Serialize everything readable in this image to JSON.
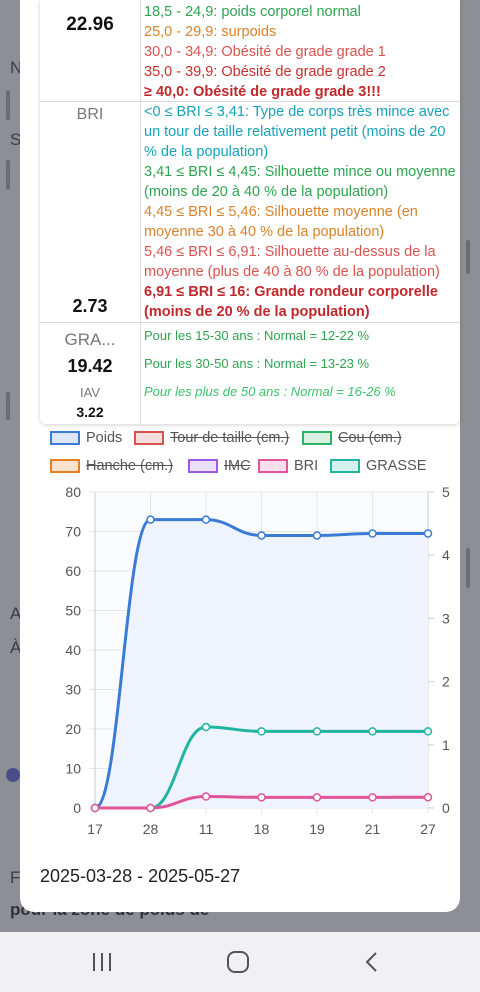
{
  "background": {
    "letters": [
      "N",
      "S",
      "A",
      "À",
      "F"
    ],
    "bottom_text": "pour la zone de poids de"
  },
  "table": {
    "imc": {
      "value": "22.96",
      "ranges": [
        {
          "text": "18,5 - 24,9: poids corporel normal",
          "color": "#2ea44f"
        },
        {
          "text": "25,0 - 29,9: surpoids",
          "color": "#d9822b"
        },
        {
          "text": "30,0 - 34,9: Obésité de grade grade 1",
          "color": "#d9534f"
        },
        {
          "text": "35,0 - 39,9: Obésité de grade grade 2",
          "color": "#c9302c"
        },
        {
          "text": "≥ 40,0: Obésité de grade grade 3!!!",
          "color": "#c0282c"
        }
      ]
    },
    "bri": {
      "label": "BRI",
      "value": "2.73",
      "ranges": [
        {
          "text": "<0 ≤ BRI ≤ 3,41: Type de corps très mince avec un tour de taille relativement petit (moins de 20 % de la population)"
        },
        {
          "text": "3,41 ≤ BRI ≤ 4,45: Silhouette mince ou moyenne (moins de 20 à 40 % de la population)"
        },
        {
          "text": "4,45 ≤ BRI ≤ 5,46: Silhouette moyenne (en moyenne 30 à 40 % de la population)"
        },
        {
          "text": "5,46 ≤ BRI ≤ 6,91: Silhouette au-dessus de la moyenne (plus de 40 à 80 % de la population)"
        },
        {
          "text": "6,91 ≤ BRI ≤ 16: Grande rondeur corporelle (moins de 20 % de la population)"
        }
      ]
    },
    "grasse": {
      "label": "GRA...",
      "value": "19.42",
      "iav_label": "IAV",
      "iav_value": "3.22",
      "ranges": [
        {
          "text": "Pour les 15-30 ans : Normal = 12-22 %"
        },
        {
          "text": "Pour les 30-50 ans : Normal = 13-23 %"
        },
        {
          "text": "Pour les plus de 50 ans : Normal = 16-26 %"
        }
      ]
    }
  },
  "legend": [
    {
      "label": "Poids",
      "color": "#3a7bd5",
      "fill": "#dbe7f8",
      "hidden": false
    },
    {
      "label": "Tour de taille (cm.)",
      "color": "#d9534f",
      "fill": "#f6dede",
      "hidden": true
    },
    {
      "label": "Cou (cm.)",
      "color": "#28b463",
      "fill": "#d9f0e2",
      "hidden": true
    },
    {
      "label": "Hanche (cm.)",
      "color": "#e67e22",
      "fill": "#f8e2cf",
      "hidden": true
    },
    {
      "label": "IMC",
      "color": "#9b59e8",
      "fill": "#ecdff9",
      "hidden": true
    },
    {
      "label": "BRI",
      "color": "#e0559a",
      "fill": "#f9dfea",
      "hidden": false
    },
    {
      "label": "GRASSE",
      "color": "#1fb5a0",
      "fill": "#d5f1ed",
      "hidden": false
    }
  ],
  "chart_data": {
    "type": "line",
    "categories": [
      "17",
      "28",
      "11",
      "18",
      "19",
      "21",
      "27"
    ],
    "y_left": {
      "min": 0,
      "max": 80,
      "ticks": [
        0,
        10,
        20,
        30,
        40,
        50,
        60,
        70,
        80
      ]
    },
    "y_right": {
      "min": 0,
      "max": 5,
      "ticks": [
        0,
        1,
        2,
        3,
        4,
        5
      ]
    },
    "series": [
      {
        "name": "Poids",
        "axis": "left",
        "color": "#3a7bd5",
        "values": [
          0,
          73,
          73,
          69,
          69,
          69.5,
          69.5
        ]
      },
      {
        "name": "GRASSE",
        "axis": "left",
        "color": "#1fb5a0",
        "values": [
          0,
          0,
          20.5,
          19.4,
          19.4,
          19.4,
          19.4
        ]
      },
      {
        "name": "BRI",
        "axis": "left",
        "color": "#e0559a",
        "values": [
          0,
          0,
          2.9,
          2.7,
          2.7,
          2.7,
          2.73
        ]
      }
    ]
  },
  "date_range": "2025-03-28 - 2025-05-27",
  "navbar": {
    "recent": "recent-apps-icon",
    "home": "home-icon",
    "back": "back-icon"
  }
}
